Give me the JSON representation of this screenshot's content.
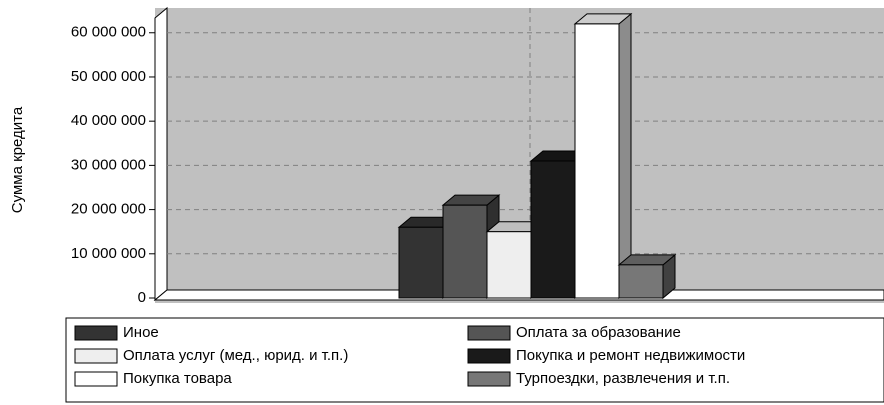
{
  "chart_data": {
    "type": "bar3d",
    "y_label": "Сумма кредита",
    "categories": [
      null
    ],
    "series": [
      {
        "name": "Иное",
        "color": "#333333",
        "values": [
          16000000
        ]
      },
      {
        "name": "Оплата за образование",
        "color": "#555555",
        "values": [
          21000000
        ]
      },
      {
        "name": "Оплата услуг (мед., юрид. и т.п.)",
        "color": "#eeeeee",
        "values": [
          15000000
        ]
      },
      {
        "name": "Покупка и ремонт недвижимости",
        "color": "#1a1a1a",
        "values": [
          31000000
        ]
      },
      {
        "name": "Покупка товара",
        "color": "#ffffff",
        "values": [
          62000000
        ]
      },
      {
        "name": "Турпоездки, развлечения и т.п.",
        "color": "#777777",
        "values": [
          7500000
        ]
      }
    ],
    "ylim": [
      0,
      63000000
    ],
    "yticks": [
      0,
      {
        "value": 10000000,
        "label": "10 000 000"
      },
      {
        "value": 20000000,
        "label": "20 000 000"
      },
      {
        "value": 30000000,
        "label": "30 000 000"
      },
      {
        "value": 40000000,
        "label": "40 000 000"
      },
      {
        "value": 50000000,
        "label": "50 000 000"
      },
      {
        "value": 60000000,
        "label": "60 000 000"
      }
    ],
    "grid": true,
    "legend": "bottom"
  }
}
